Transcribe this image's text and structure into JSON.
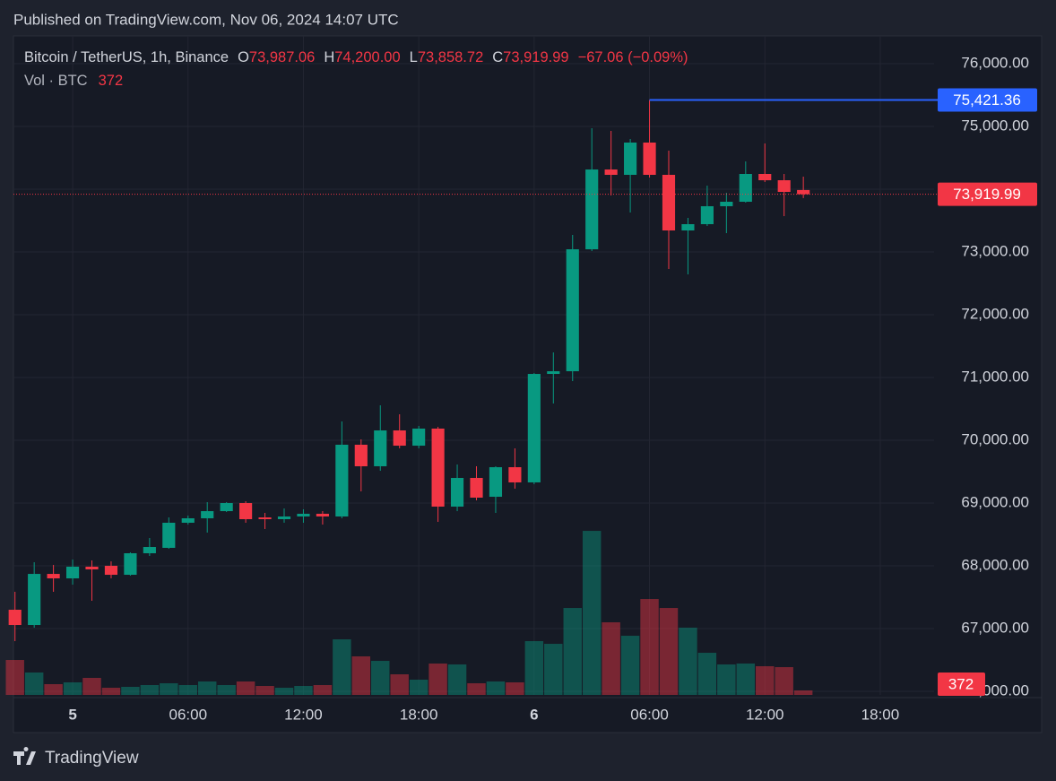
{
  "header": {
    "published": "Published on TradingView.com, Nov 06, 2024 14:07 UTC"
  },
  "footer": {
    "brand": "TradingView"
  },
  "chart_data": {
    "type": "candlestick",
    "legend": {
      "symbol": "Bitcoin / TetherUS, 1h, Binance",
      "items": [
        {
          "key": "O",
          "value": "73,987.06"
        },
        {
          "key": "H",
          "value": "74,200.00"
        },
        {
          "key": "L",
          "value": "73,858.72"
        },
        {
          "key": "C",
          "value": "73,919.99"
        }
      ],
      "change": "−67.06 (−0.09%)",
      "volume_label": "Vol · BTC"
    },
    "x": [
      -3,
      -2,
      -1,
      0,
      1,
      2,
      3,
      4,
      5,
      6,
      7,
      8,
      9,
      10,
      11,
      12,
      13,
      14,
      15,
      16,
      17,
      18,
      19,
      20,
      21,
      22,
      23,
      24,
      25,
      26,
      27,
      28,
      29,
      30,
      31,
      32,
      33,
      34,
      35,
      36,
      37,
      38
    ],
    "open": [
      67300,
      67057,
      67871,
      67800,
      67986,
      68000,
      67857,
      68200,
      68286,
      68686,
      68757,
      68871,
      69000,
      68771,
      68743,
      68786,
      68829,
      68786,
      69929,
      69586,
      70157,
      69914,
      70186,
      68943,
      69400,
      69100,
      69571,
      69329,
      71057,
      71100,
      73043,
      74314,
      74229,
      74743,
      74229,
      73343,
      73443,
      73729,
      73800,
      74243,
      74143,
      73987.06
    ],
    "high": [
      67586,
      68057,
      68014,
      68100,
      68086,
      68071,
      68214,
      68443,
      68771,
      68800,
      69014,
      69014,
      69029,
      68843,
      68914,
      68900,
      68871,
      70300,
      70014,
      70557,
      70414,
      70229,
      70214,
      69614,
      69586,
      69586,
      69871,
      71071,
      71400,
      73271,
      74971,
      74929,
      74800,
      75421.36,
      74614,
      73543,
      74057,
      73943,
      74443,
      74729,
      74243,
      74200
    ],
    "low": [
      66800,
      67014,
      67586,
      67700,
      67443,
      67800,
      67843,
      68157,
      68271,
      68657,
      68529,
      68857,
      68686,
      68586,
      68686,
      68686,
      68657,
      68757,
      69186,
      69514,
      69871,
      69871,
      68700,
      68871,
      69043,
      68843,
      69229,
      69300,
      70586,
      70943,
      73014,
      73900,
      73629,
      74186,
      72729,
      72643,
      73414,
      73300,
      73786,
      74114,
      73571,
      73858.72
    ],
    "close": [
      67057,
      67871,
      67800,
      67986,
      67943,
      67857,
      68200,
      68300,
      68686,
      68757,
      68871,
      69000,
      68743,
      68743,
      68786,
      68829,
      68786,
      69929,
      69586,
      70157,
      69914,
      70186,
      68943,
      69400,
      69086,
      69571,
      69329,
      71057,
      71100,
      73043,
      74314,
      74229,
      74743,
      74229,
      73343,
      73443,
      73729,
      73800,
      74243,
      74143,
      73957,
      73919.99
    ],
    "volume": [
      2902,
      1860,
      893,
      1042,
      1414,
      595,
      670,
      818,
      967,
      818,
      1116,
      818,
      1116,
      744,
      595,
      744,
      818,
      4613,
      3199,
      2827,
      1711,
      1265,
      2604,
      2530,
      967,
      1116,
      1042,
      4464,
      4241,
      7217,
      13615,
      6026,
      4910,
      7961,
      7217,
      5580,
      3497,
      2530,
      2604,
      2381,
      2306,
      372
    ],
    "up_color": "#089981",
    "down_color": "#f23645",
    "xlim": [
      -3.08,
      44.8
    ],
    "xticks": [
      {
        "value": 0,
        "label": "5"
      },
      {
        "value": 6,
        "label": "06:00"
      },
      {
        "value": 12,
        "label": "12:00"
      },
      {
        "value": 18,
        "label": "18:00"
      },
      {
        "value": 24,
        "label": "6"
      },
      {
        "value": 30,
        "label": "06:00"
      },
      {
        "value": 36,
        "label": "12:00"
      },
      {
        "value": 42,
        "label": "18:00"
      }
    ],
    "ylim": [
      65943,
      76443
    ],
    "yticks": [
      {
        "value": 66000,
        "label": "66,000.00"
      },
      {
        "value": 67000,
        "label": "67,000.00"
      },
      {
        "value": 68000,
        "label": "68,000.00"
      },
      {
        "value": 69000,
        "label": "69,000.00"
      },
      {
        "value": 70000,
        "label": "70,000.00"
      },
      {
        "value": 71000,
        "label": "71,000.00"
      },
      {
        "value": 72000,
        "label": "72,000.00"
      },
      {
        "value": 73000,
        "label": "73,000.00"
      },
      {
        "value": 74000,
        "label": "74,000.00"
      },
      {
        "value": 75000,
        "label": "75,000.00"
      },
      {
        "value": 76000,
        "label": "76,000.00"
      }
    ],
    "volume_ylim": [
      0,
      54700
    ],
    "grid": true,
    "annotations": [
      {
        "value": 75421.36,
        "label": "75,421.36",
        "color": "#2962ff"
      },
      {
        "value": 73919.99,
        "label": "73,919.99",
        "color": "#f23645"
      }
    ]
  }
}
